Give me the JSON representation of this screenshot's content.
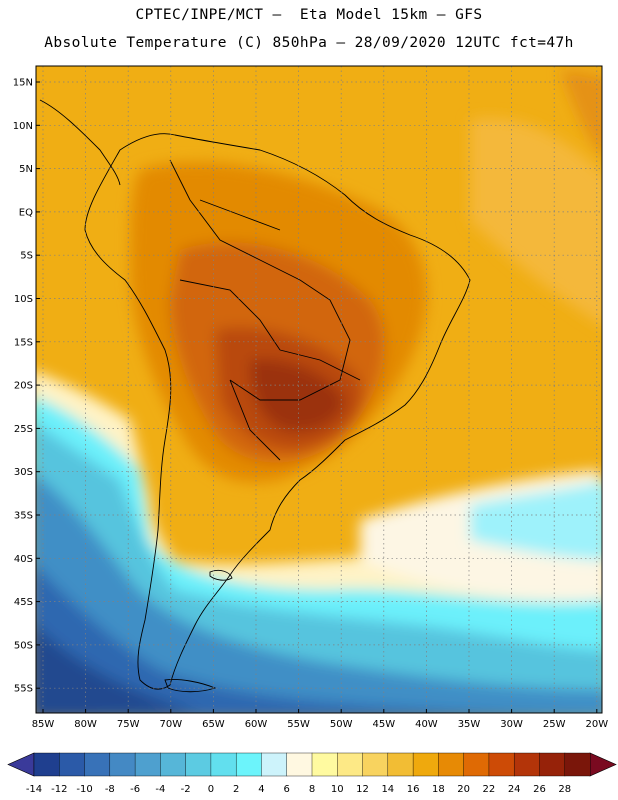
{
  "header": {
    "title_line1": "CPTEC/INPE/MCT –  Eta Model 15km – GFS",
    "title_line2": "Absolute Temperature (C) 850hPa – 28/09/2020 12UTC fct=47h"
  },
  "map": {
    "lat_labels": [
      "15N",
      "10N",
      "5N",
      "EQ",
      "5S",
      "10S",
      "15S",
      "20S",
      "25S",
      "30S",
      "35S",
      "40S",
      "45S",
      "50S",
      "55S"
    ],
    "lon_labels": [
      "85W",
      "80W",
      "75W",
      "70W",
      "65W",
      "60W",
      "55W",
      "50W",
      "45W",
      "40W",
      "35W",
      "30W",
      "25W",
      "20W"
    ]
  },
  "colorbar": {
    "labels": [
      "-14",
      "-12",
      "-10",
      "-8",
      "-6",
      "-4",
      "-2",
      "0",
      "2",
      "4",
      "6",
      "8",
      "10",
      "12",
      "14",
      "16",
      "18",
      "20",
      "22",
      "24",
      "26",
      "28"
    ],
    "colors": [
      "#1f3f8f",
      "#2b5aa8",
      "#3872b8",
      "#4489c4",
      "#4ea0cf",
      "#56b6d8",
      "#5ccbe2",
      "#62dfee",
      "#6cf4fb",
      "#cdf3fb",
      "#fff8e1",
      "#fffaa0",
      "#fde986",
      "#f8d35f",
      "#f2bd34",
      "#efa90d",
      "#e78a05",
      "#df6a04",
      "#cd4b06",
      "#b33409",
      "#962209",
      "#7a160a"
    ],
    "under_color": "#3a3a9a",
    "over_color": "#7a0a20"
  }
}
